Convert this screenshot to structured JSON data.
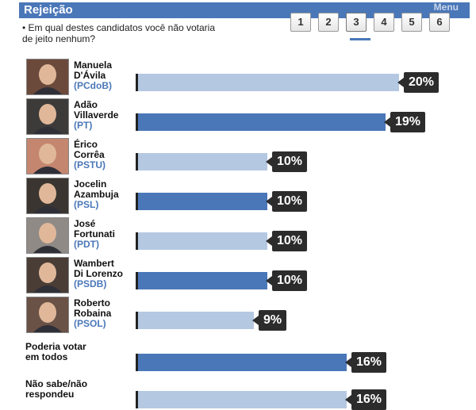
{
  "header": {
    "title": "Rejeição",
    "menu_label": "Menu"
  },
  "question": "• Em qual destes candidatos você não votaria de jeito nenhum?",
  "pager": {
    "pages": [
      "1",
      "2",
      "3",
      "4",
      "5",
      "6"
    ],
    "active": "3"
  },
  "colors": {
    "header_blue": "#4a77b8",
    "bar_light": "#b5c8e2",
    "bar_dark": "#4a77b8",
    "callout": "#2c2c2c",
    "party_blue": "#4a77b8"
  },
  "chart_data": {
    "type": "bar",
    "categories": [
      "Manuela D'Ávila (PCdoB)",
      "Adão Villaverde (PT)",
      "Érico Corrêa (PSTU)",
      "Jocelin Azambuja (PSL)",
      "José Fortunati (PDT)",
      "Wambert Di Lorenzo (PSDB)",
      "Roberto Robaina (PSOL)",
      "Poderia votar em todos",
      "Não sabe/não respondeu"
    ],
    "values": [
      20,
      19,
      10,
      10,
      10,
      10,
      9,
      16,
      16
    ],
    "unit": "%"
  },
  "rows": [
    {
      "name1": "Manuela",
      "name2": "D'Ávila",
      "party": "(PCdoB)",
      "value_label": "20%",
      "style": "light",
      "icon": "photo-manuela"
    },
    {
      "name1": "Adão",
      "name2": "Villaverde",
      "party": "(PT)",
      "value_label": "19%",
      "style": "dark",
      "icon": "photo-adao"
    },
    {
      "name1": "Érico",
      "name2": "Corrêa",
      "party": "(PSTU)",
      "value_label": "10%",
      "style": "light",
      "icon": "photo-erico"
    },
    {
      "name1": "Jocelin",
      "name2": "Azambuja",
      "party": "(PSL)",
      "value_label": "10%",
      "style": "dark",
      "icon": "photo-jocelin"
    },
    {
      "name1": "José",
      "name2": "Fortunati",
      "party": "(PDT)",
      "value_label": "10%",
      "style": "light",
      "icon": "photo-jose"
    },
    {
      "name1": "Wambert",
      "name2": "Di Lorenzo",
      "party": "(PSDB)",
      "value_label": "10%",
      "style": "dark",
      "icon": "photo-wambert"
    },
    {
      "name1": "Roberto",
      "name2": "Robaina",
      "party": "(PSOL)",
      "value_label": "9%",
      "style": "light",
      "icon": "photo-roberto"
    },
    {
      "label1": "Poderia votar",
      "label2": "em todos",
      "value_label": "16%",
      "style": "dark"
    },
    {
      "label1": "Não sabe/não",
      "label2": "respondeu",
      "value_label": "16%",
      "style": "light"
    }
  ]
}
